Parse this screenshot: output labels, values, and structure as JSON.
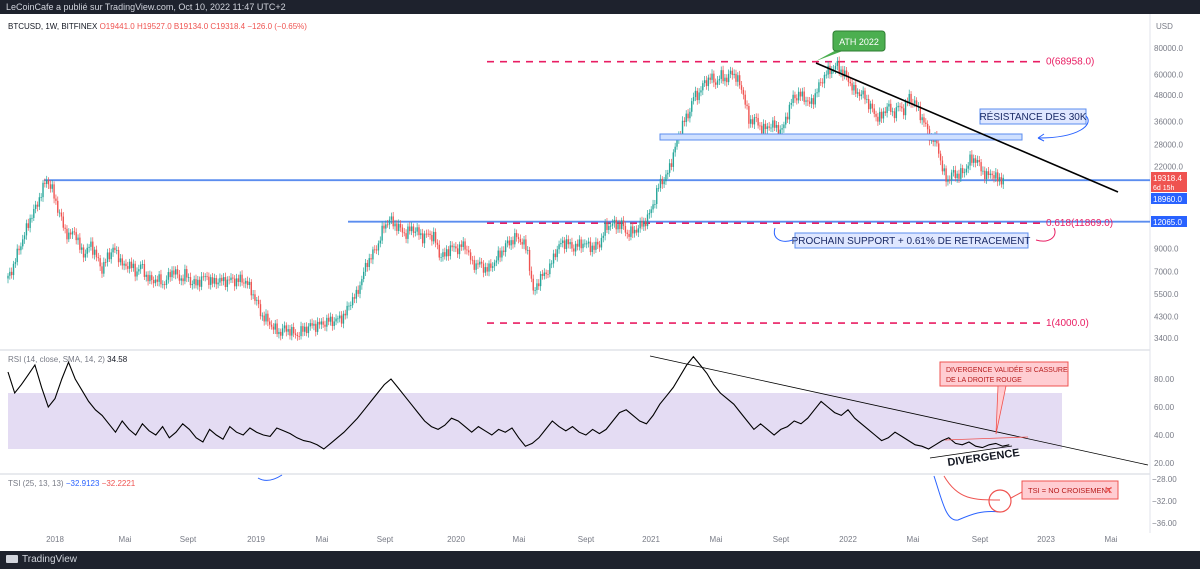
{
  "header": {
    "publisher": "LeCoinCafe a publié sur TradingView.com, Oct 10, 2022 11:47 UTC+2"
  },
  "footer": {
    "brand": "TradingView"
  },
  "legend": {
    "symbol": "BTCUSD, 1W, BITFINEX",
    "open": "O19441.0",
    "high": "H19527.0",
    "low": "B19134.0",
    "close": "C19318.4",
    "change": "−126.0 (−0.65%)"
  },
  "rsi_legend": {
    "label": "RSI (14, close, SMA, 14, 2)",
    "value": "34.58"
  },
  "tsi_legend": {
    "label": "TSI (25, 13, 13)",
    "value_a": "−32.9123",
    "value_b": "−32.2221"
  },
  "colors": {
    "up": "#26a69a",
    "down": "#ef5350",
    "fib": "#e91e63",
    "support": "#5b8def",
    "rsi_band": "#e4dcf3",
    "tsi_line": "#2962ff",
    "tsi_signal": "#ef5350"
  },
  "chart_data": [
    {
      "type": "candlestick",
      "scale": "log",
      "currency": "USD",
      "price_ticks": [
        80000,
        60000,
        48000,
        36000,
        28000,
        22000,
        12065,
        9000,
        7000,
        5500,
        4300,
        3400
      ],
      "x_ticks": [
        "2018",
        "Mai",
        "Sept",
        "2019",
        "Mai",
        "Sept",
        "2020",
        "Mai",
        "Sept",
        "2021",
        "Mai",
        "Sept",
        "2022",
        "Mai",
        "Sept",
        "2023",
        "Mai"
      ],
      "current_price": {
        "value": "19318.4",
        "countdown": "6d 15h"
      },
      "price_labels": [
        "18960.0",
        "12065.0"
      ],
      "series_close": [
        [
          0,
          6500
        ],
        [
          3,
          7500
        ],
        [
          6,
          9000
        ],
        [
          9,
          10500
        ],
        [
          12,
          12500
        ],
        [
          15,
          14000
        ],
        [
          18,
          16500
        ],
        [
          21,
          19200
        ],
        [
          24,
          17000
        ],
        [
          27,
          14000
        ],
        [
          30,
          11500
        ],
        [
          33,
          10200
        ],
        [
          36,
          11000
        ],
        [
          39,
          9000
        ],
        [
          42,
          8500
        ],
        [
          45,
          9500
        ],
        [
          48,
          8200
        ],
        [
          51,
          7200
        ],
        [
          54,
          8200
        ],
        [
          57,
          9000
        ],
        [
          60,
          8300
        ],
        [
          63,
          7300
        ],
        [
          66,
          7700
        ],
        [
          69,
          6900
        ],
        [
          72,
          7500
        ],
        [
          75,
          6700
        ],
        [
          78,
          6300
        ],
        [
          81,
          6500
        ],
        [
          84,
          6100
        ],
        [
          87,
          6600
        ],
        [
          90,
          7200
        ],
        [
          93,
          6400
        ],
        [
          96,
          6800
        ],
        [
          99,
          6300
        ],
        [
          102,
          6100
        ],
        [
          105,
          6500
        ],
        [
          108,
          6600
        ],
        [
          111,
          6200
        ],
        [
          114,
          6400
        ],
        [
          117,
          6300
        ],
        [
          120,
          6400
        ],
        [
          123,
          6350
        ],
        [
          126,
          6400
        ],
        [
          129,
          6300
        ],
        [
          132,
          5700
        ],
        [
          135,
          5000
        ],
        [
          138,
          4300
        ],
        [
          141,
          4100
        ],
        [
          144,
          3800
        ],
        [
          147,
          3600
        ],
        [
          150,
          3750
        ],
        [
          153,
          3700
        ],
        [
          156,
          3500
        ],
        [
          159,
          3650
        ],
        [
          162,
          3800
        ],
        [
          165,
          3900
        ],
        [
          168,
          3900
        ],
        [
          171,
          4000
        ],
        [
          174,
          4100
        ],
        [
          177,
          4100
        ],
        [
          180,
          4200
        ],
        [
          183,
          4400
        ],
        [
          186,
          5100
        ],
        [
          189,
          5400
        ],
        [
          192,
          6500
        ],
        [
          195,
          7800
        ],
        [
          198,
          8500
        ],
        [
          201,
          9500
        ],
        [
          204,
          11500
        ],
        [
          207,
          12300
        ],
        [
          210,
          11700
        ],
        [
          213,
          11100
        ],
        [
          216,
          10500
        ],
        [
          219,
          11300
        ],
        [
          222,
          10800
        ],
        [
          225,
          10200
        ],
        [
          228,
          10500
        ],
        [
          231,
          10300
        ],
        [
          234,
          8500
        ],
        [
          237,
          8300
        ],
        [
          240,
          9200
        ],
        [
          243,
          8900
        ],
        [
          246,
          9300
        ],
        [
          249,
          9100
        ],
        [
          252,
          7500
        ],
        [
          255,
          7700
        ],
        [
          258,
          7300
        ],
        [
          261,
          7200
        ],
        [
          264,
          7800
        ],
        [
          267,
          8500
        ],
        [
          270,
          9300
        ],
        [
          273,
          9800
        ],
        [
          276,
          10200
        ],
        [
          279,
          9700
        ],
        [
          282,
          8700
        ],
        [
          285,
          5500
        ],
        [
          288,
          6400
        ],
        [
          291,
          6800
        ],
        [
          294,
          7300
        ],
        [
          297,
          8700
        ],
        [
          300,
          9500
        ],
        [
          303,
          9700
        ],
        [
          306,
          9100
        ],
        [
          309,
          9300
        ],
        [
          312,
          9600
        ],
        [
          315,
          9300
        ],
        [
          318,
          9100
        ],
        [
          321,
          9500
        ],
        [
          324,
          11200
        ],
        [
          327,
          11800
        ],
        [
          330,
          11600
        ],
        [
          333,
          11700
        ],
        [
          336,
          10600
        ],
        [
          339,
          10800
        ],
        [
          342,
          11300
        ],
        [
          345,
          11900
        ],
        [
          348,
          13000
        ],
        [
          351,
          15500
        ],
        [
          354,
          18700
        ],
        [
          357,
          19400
        ],
        [
          360,
          23500
        ],
        [
          363,
          29000
        ],
        [
          366,
          35000
        ],
        [
          369,
          38500
        ],
        [
          372,
          47000
        ],
        [
          375,
          49000
        ],
        [
          378,
          55000
        ],
        [
          381,
          58000
        ],
        [
          384,
          55000
        ],
        [
          387,
          59000
        ],
        [
          390,
          57000
        ],
        [
          393,
          62000
        ],
        [
          396,
          56000
        ],
        [
          399,
          49000
        ],
        [
          402,
          36000
        ],
        [
          405,
          37000
        ],
        [
          408,
          34000
        ],
        [
          411,
          33000
        ],
        [
          414,
          35000
        ],
        [
          417,
          33500
        ],
        [
          420,
          32500
        ],
        [
          423,
          39500
        ],
        [
          426,
          46500
        ],
        [
          429,
          48000
        ],
        [
          432,
          47000
        ],
        [
          435,
          43000
        ],
        [
          438,
          48000
        ],
        [
          441,
          55000
        ],
        [
          444,
          61000
        ],
        [
          447,
          63500
        ],
        [
          450,
          66000
        ],
        [
          453,
          61000
        ],
        [
          456,
          57000
        ],
        [
          459,
          50000
        ],
        [
          462,
          49000
        ],
        [
          465,
          47000
        ],
        [
          468,
          42000
        ],
        [
          471,
          38000
        ],
        [
          474,
          37500
        ],
        [
          477,
          43000
        ],
        [
          480,
          39000
        ],
        [
          483,
          42000
        ],
        [
          486,
          41000
        ],
        [
          489,
          46500
        ],
        [
          492,
          44000
        ],
        [
          495,
          39000
        ],
        [
          498,
          34000
        ],
        [
          501,
          29500
        ],
        [
          504,
          29000
        ],
        [
          507,
          21000
        ],
        [
          510,
          19000
        ],
        [
          513,
          20500
        ],
        [
          516,
          20000
        ],
        [
          519,
          21000
        ],
        [
          522,
          23500
        ],
        [
          525,
          24000
        ],
        [
          528,
          21400
        ],
        [
          531,
          19800
        ],
        [
          534,
          20500
        ],
        [
          537,
          19000
        ],
        [
          540,
          19300
        ]
      ],
      "horizontal_levels": [
        {
          "price": 18960,
          "color": "#5b8def"
        },
        {
          "price": 12065,
          "color": "#5b8def"
        }
      ],
      "fibonacci": [
        {
          "label": "0(68958.0)",
          "price": 68958
        },
        {
          "label": "0.618(11869.0)",
          "price": 11869
        },
        {
          "label": "1(4000.0)",
          "price": 4000
        }
      ],
      "annotations": {
        "ath": "ATH 2022",
        "resistance": "RÉSISTANCE DES 30K",
        "support": "PROCHAIN SUPPORT + 0.61% DE RETRACEMENT"
      }
    },
    {
      "type": "line",
      "name": "RSI",
      "y_ticks": [
        80,
        60,
        40,
        20
      ],
      "band": [
        30,
        70
      ],
      "values": [
        [
          0,
          85
        ],
        [
          2,
          70
        ],
        [
          4,
          76
        ],
        [
          6,
          83
        ],
        [
          8,
          90
        ],
        [
          10,
          74
        ],
        [
          12,
          60
        ],
        [
          14,
          66
        ],
        [
          16,
          80
        ],
        [
          18,
          92
        ],
        [
          20,
          80
        ],
        [
          22,
          72
        ],
        [
          24,
          64
        ],
        [
          26,
          58
        ],
        [
          28,
          54
        ],
        [
          30,
          48
        ],
        [
          32,
          42
        ],
        [
          34,
          50
        ],
        [
          36,
          44
        ],
        [
          38,
          40
        ],
        [
          40,
          48
        ],
        [
          42,
          43
        ],
        [
          44,
          40
        ],
        [
          46,
          46
        ],
        [
          48,
          38
        ],
        [
          50,
          42
        ],
        [
          52,
          48
        ],
        [
          54,
          44
        ],
        [
          56,
          38
        ],
        [
          58,
          35
        ],
        [
          60,
          44
        ],
        [
          62,
          40
        ],
        [
          64,
          37
        ],
        [
          66,
          46
        ],
        [
          68,
          42
        ],
        [
          70,
          40
        ],
        [
          72,
          45
        ],
        [
          74,
          42
        ],
        [
          76,
          40
        ],
        [
          78,
          39
        ],
        [
          80,
          45
        ],
        [
          82,
          43
        ],
        [
          84,
          41
        ],
        [
          86,
          38
        ],
        [
          88,
          36
        ],
        [
          90,
          35
        ],
        [
          92,
          33
        ],
        [
          94,
          30
        ],
        [
          96,
          34
        ],
        [
          98,
          38
        ],
        [
          100,
          42
        ],
        [
          102,
          47
        ],
        [
          104,
          52
        ],
        [
          106,
          58
        ],
        [
          108,
          64
        ],
        [
          110,
          70
        ],
        [
          112,
          76
        ],
        [
          114,
          80
        ],
        [
          116,
          74
        ],
        [
          118,
          68
        ],
        [
          120,
          62
        ],
        [
          122,
          56
        ],
        [
          124,
          50
        ],
        [
          126,
          46
        ],
        [
          128,
          44
        ],
        [
          130,
          47
        ],
        [
          132,
          52
        ],
        [
          134,
          50
        ],
        [
          136,
          46
        ],
        [
          138,
          42
        ],
        [
          140,
          46
        ],
        [
          142,
          43
        ],
        [
          144,
          40
        ],
        [
          146,
          44
        ],
        [
          148,
          42
        ],
        [
          150,
          45
        ],
        [
          152,
          38
        ],
        [
          154,
          32
        ],
        [
          156,
          34
        ],
        [
          158,
          38
        ],
        [
          160,
          44
        ],
        [
          162,
          50
        ],
        [
          164,
          46
        ],
        [
          166,
          43
        ],
        [
          168,
          46
        ],
        [
          170,
          42
        ],
        [
          172,
          40
        ],
        [
          174,
          44
        ],
        [
          176,
          41
        ],
        [
          178,
          44
        ],
        [
          180,
          50
        ],
        [
          182,
          56
        ],
        [
          184,
          58
        ],
        [
          186,
          54
        ],
        [
          188,
          50
        ],
        [
          190,
          48
        ],
        [
          192,
          54
        ],
        [
          194,
          62
        ],
        [
          196,
          68
        ],
        [
          198,
          74
        ],
        [
          200,
          82
        ],
        [
          202,
          90
        ],
        [
          204,
          96
        ],
        [
          206,
          90
        ],
        [
          208,
          84
        ],
        [
          210,
          76
        ],
        [
          212,
          70
        ],
        [
          214,
          66
        ],
        [
          216,
          62
        ],
        [
          218,
          56
        ],
        [
          220,
          50
        ],
        [
          222,
          44
        ],
        [
          224,
          48
        ],
        [
          226,
          44
        ],
        [
          228,
          40
        ],
        [
          230,
          44
        ],
        [
          232,
          46
        ],
        [
          234,
          50
        ],
        [
          236,
          48
        ],
        [
          238,
          52
        ],
        [
          240,
          58
        ],
        [
          242,
          64
        ],
        [
          244,
          60
        ],
        [
          246,
          56
        ],
        [
          248,
          54
        ],
        [
          250,
          58
        ],
        [
          252,
          52
        ],
        [
          254,
          48
        ],
        [
          256,
          44
        ],
        [
          258,
          40
        ],
        [
          260,
          36
        ],
        [
          262,
          38
        ],
        [
          264,
          42
        ],
        [
          266,
          39
        ],
        [
          268,
          36
        ],
        [
          270,
          33
        ],
        [
          272,
          32
        ],
        [
          274,
          30
        ],
        [
          276,
          33
        ],
        [
          278,
          36
        ],
        [
          280,
          38
        ],
        [
          282,
          34
        ],
        [
          284,
          33
        ],
        [
          286,
          35
        ],
        [
          288,
          32
        ],
        [
          290,
          31
        ],
        [
          292,
          33
        ],
        [
          294,
          34
        ],
        [
          296,
          32
        ],
        [
          298,
          33
        ]
      ]
    },
    {
      "type": "line",
      "name": "TSI",
      "y_ticks": [
        -28,
        -32,
        -36
      ],
      "annotations": {
        "divergence_box": "DIVERGENCE VALIDÉE SI CASSURE DE LA DROITE ROUGE",
        "divergence": "DIVERGENCE",
        "tsi_box": "TSI = NO CROISEMENT"
      }
    }
  ]
}
